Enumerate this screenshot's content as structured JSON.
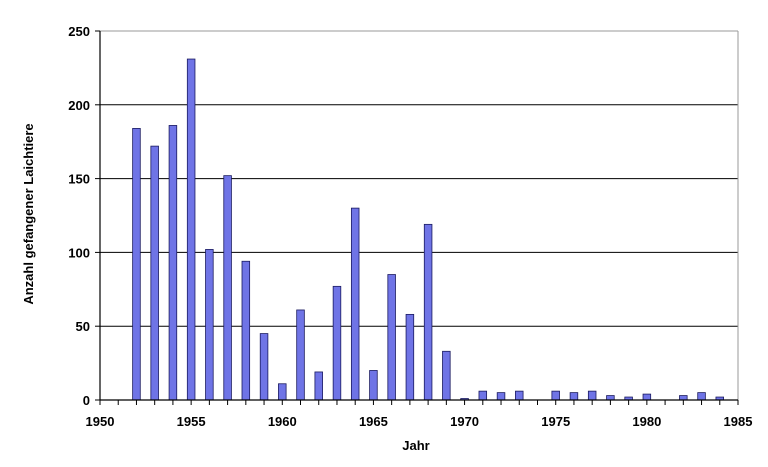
{
  "chart_data": {
    "type": "bar",
    "title": "",
    "xlabel": "Jahr",
    "ylabel": "Anzahl gefangener Laichtiere",
    "xlim": [
      1950,
      1985
    ],
    "ylim": [
      0,
      250
    ],
    "x_ticks": [
      "1950",
      "1955",
      "1960",
      "1965",
      "1970",
      "1975",
      "1980",
      "1985"
    ],
    "y_ticks": [
      "0",
      "50",
      "100",
      "150",
      "200",
      "250"
    ],
    "grid": true,
    "legend": "none",
    "bar_color": "#6f74e6",
    "bar_edge_color": "#1a1a60",
    "x": [
      1952,
      1953,
      1954,
      1955,
      1956,
      1957,
      1958,
      1959,
      1960,
      1961,
      1962,
      1963,
      1964,
      1965,
      1966,
      1967,
      1968,
      1969,
      1970,
      1971,
      1972,
      1973,
      1975,
      1976,
      1977,
      1978,
      1979,
      1980,
      1982,
      1983,
      1984
    ],
    "values": [
      184,
      172,
      186,
      231,
      102,
      152,
      94,
      45,
      11,
      61,
      19,
      77,
      130,
      20,
      85,
      58,
      119,
      33,
      1,
      6,
      5,
      6,
      6,
      5,
      6,
      3,
      2,
      4,
      3,
      5,
      2
    ]
  }
}
